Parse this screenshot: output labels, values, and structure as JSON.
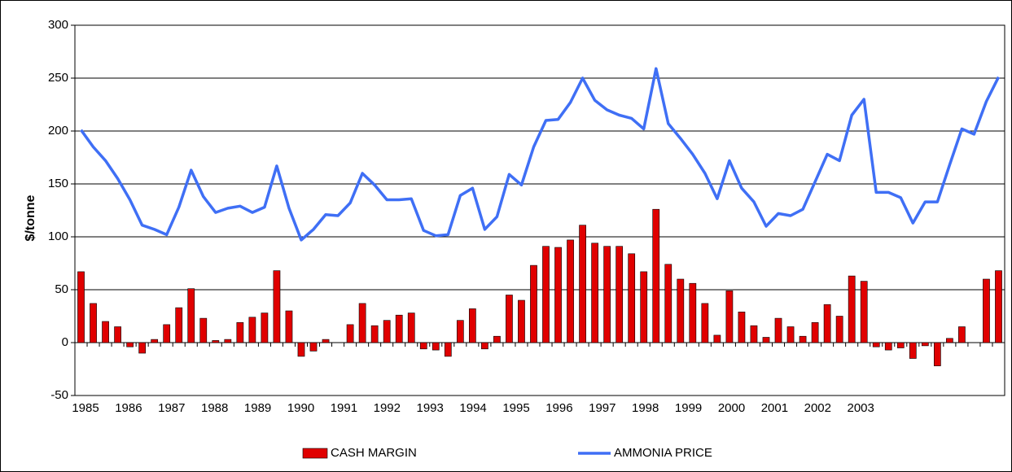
{
  "chart_data": {
    "type": "bar_line",
    "ylabel": "$/tonne",
    "categories": [
      null,
      null,
      null,
      null,
      null,
      null,
      null,
      null,
      null,
      null,
      null,
      null,
      null,
      null,
      null,
      null,
      null,
      null,
      null,
      null,
      null,
      null,
      null,
      null,
      null,
      null,
      null,
      null,
      null,
      null,
      null,
      null,
      null,
      null,
      null,
      null,
      null,
      null,
      null,
      null,
      null,
      null,
      null,
      null,
      null,
      null,
      null,
      null,
      null,
      null,
      null,
      null,
      null,
      null,
      null,
      null,
      null,
      null,
      null,
      null,
      null,
      null,
      null,
      null,
      null,
      null,
      null,
      null,
      null,
      null,
      null,
      null,
      null,
      null,
      null,
      null
    ],
    "xtick_labels": [
      "1985",
      "1986",
      "1987",
      "1988",
      "1989",
      "1990",
      "1991",
      "1992",
      "1993",
      "1994",
      "1995",
      "1996",
      "1997",
      "1998",
      "1999",
      "2000",
      "2001",
      "2002",
      "2003"
    ],
    "series": [
      {
        "name": "CASH MARGIN",
        "type": "bar",
        "color": "#e00000",
        "values": [
          67,
          37,
          20,
          15,
          -4,
          -10,
          3,
          17,
          33,
          51,
          23,
          2,
          3,
          19,
          24,
          28,
          68,
          30,
          -13,
          -8,
          3,
          0,
          17,
          37,
          16,
          21,
          26,
          28,
          -6,
          -7,
          -13,
          21,
          32,
          -6,
          6,
          45,
          40,
          73,
          91,
          90,
          97,
          111,
          94,
          91,
          91,
          84,
          67,
          126,
          74,
          60,
          56,
          37,
          7,
          49,
          29,
          16,
          5,
          23,
          15,
          6,
          19,
          36,
          25,
          63,
          58,
          -4,
          -7,
          -5,
          -15,
          -3,
          -22,
          4,
          15,
          0,
          60,
          68
        ]
      },
      {
        "name": "AMMONIA PRICE",
        "type": "line",
        "color": "#3f6ff5",
        "values": [
          201,
          185,
          172,
          155,
          135,
          111,
          107,
          102,
          128,
          163,
          138,
          123,
          127,
          129,
          123,
          128,
          167,
          127,
          97,
          107,
          121,
          120,
          132,
          160,
          149,
          135,
          135,
          136,
          106,
          101,
          102,
          139,
          146,
          107,
          119,
          159,
          149,
          185,
          210,
          211,
          227,
          250,
          229,
          220,
          215,
          212,
          202,
          259,
          207,
          193,
          178,
          160,
          136,
          172,
          146,
          133,
          110,
          122,
          120,
          126,
          152,
          178,
          172,
          215,
          230,
          142,
          142,
          137,
          113,
          133,
          133,
          168,
          202,
          197,
          228,
          251
        ]
      }
    ],
    "ylim": [
      -50,
      300
    ],
    "yticks": [
      -50,
      0,
      50,
      100,
      150,
      200,
      250,
      300
    ],
    "grid": true,
    "legend": "bottom"
  }
}
